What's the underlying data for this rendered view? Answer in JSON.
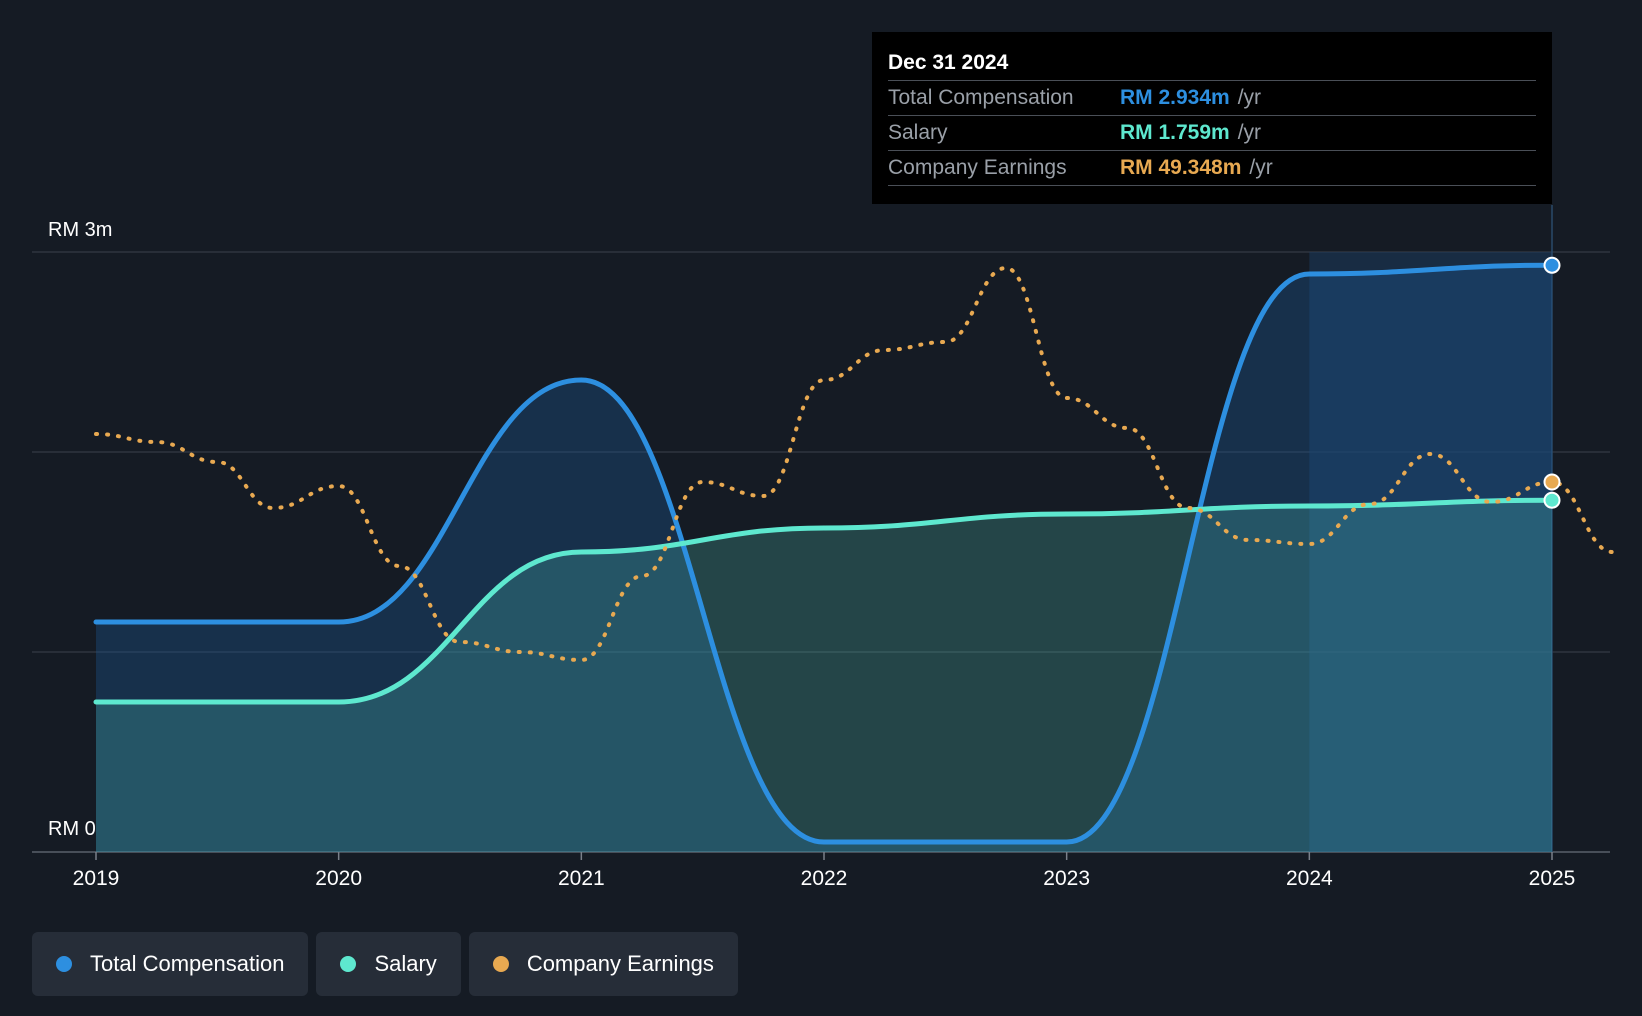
{
  "chart_data": {
    "type": "line",
    "title": "",
    "currency_prefix": "RM",
    "ylim": [
      0,
      3.0
    ],
    "y_tick_labels": {
      "top": "RM 3m",
      "bottom": "RM 0"
    },
    "x_ticks": [
      "2019",
      "2020",
      "2021",
      "2022",
      "2023",
      "2024",
      "2025"
    ],
    "x_range": [
      2019,
      2025.25
    ],
    "series": [
      {
        "name": "Total Compensation",
        "color": "#2d8fe0",
        "style": "solid-area",
        "points": [
          [
            2019.0,
            1.15
          ],
          [
            2020.0,
            1.15
          ],
          [
            2021.0,
            2.36
          ],
          [
            2022.0,
            0.05
          ],
          [
            2023.0,
            0.05
          ],
          [
            2024.0,
            2.89
          ],
          [
            2025.0,
            2.934
          ]
        ]
      },
      {
        "name": "Salary",
        "color": "#5ee8cf",
        "style": "solid-area",
        "points": [
          [
            2019.0,
            0.75
          ],
          [
            2020.0,
            0.75
          ],
          [
            2021.0,
            1.5
          ],
          [
            2022.0,
            1.62
          ],
          [
            2023.0,
            1.69
          ],
          [
            2024.0,
            1.73
          ],
          [
            2025.0,
            1.759
          ]
        ]
      },
      {
        "name": "Company Earnings",
        "color": "#e8a951",
        "style": "dotted",
        "axis": "secondary",
        "points": [
          [
            2019.0,
            2.09
          ],
          [
            2019.25,
            2.05
          ],
          [
            2019.5,
            1.95
          ],
          [
            2019.73,
            1.72
          ],
          [
            2020.0,
            1.83
          ],
          [
            2020.25,
            1.43
          ],
          [
            2020.5,
            1.05
          ],
          [
            2020.75,
            1.0
          ],
          [
            2021.0,
            0.96
          ],
          [
            2021.25,
            1.38
          ],
          [
            2021.5,
            1.85
          ],
          [
            2021.75,
            1.78
          ],
          [
            2022.0,
            2.36
          ],
          [
            2022.25,
            2.51
          ],
          [
            2022.5,
            2.55
          ],
          [
            2022.75,
            2.92
          ],
          [
            2023.0,
            2.27
          ],
          [
            2023.25,
            2.12
          ],
          [
            2023.5,
            1.72
          ],
          [
            2023.75,
            1.56
          ],
          [
            2024.0,
            1.54
          ],
          [
            2024.25,
            1.74
          ],
          [
            2024.5,
            1.99
          ],
          [
            2024.75,
            1.75
          ],
          [
            2025.0,
            1.85
          ],
          [
            2025.25,
            1.5
          ]
        ]
      }
    ],
    "highlight_region": {
      "from": 2024.0,
      "to": 2025.0
    },
    "tooltip": {
      "date": "Dec 31 2024",
      "rows": [
        {
          "label": "Total Compensation",
          "value": "RM 2.934m",
          "unit": "/yr",
          "color": "#2d8fe0"
        },
        {
          "label": "Salary",
          "value": "RM 1.759m",
          "unit": "/yr",
          "color": "#5ee8cf"
        },
        {
          "label": "Company Earnings",
          "value": "RM 49.348m",
          "unit": "/yr",
          "color": "#e8a951"
        }
      ]
    },
    "legend": [
      {
        "label": "Total Compensation",
        "color": "#2d8fe0"
      },
      {
        "label": "Salary",
        "color": "#5ee8cf"
      },
      {
        "label": "Company Earnings",
        "color": "#e8a951"
      }
    ]
  }
}
